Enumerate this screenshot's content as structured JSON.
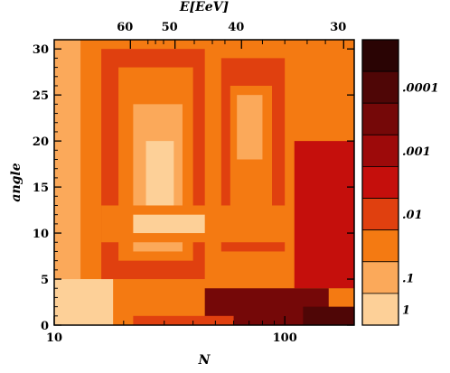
{
  "chart_data": {
    "type": "heatmap",
    "title": "",
    "xlabel": "N",
    "ylabel": "angle",
    "top_axis_label": "E[EeV]",
    "x_scale": "log",
    "xlim": [
      10,
      200
    ],
    "ylim": [
      0,
      31
    ],
    "x_tick_labels": [
      "10",
      "100"
    ],
    "y_tick_labels": [
      "0",
      "5",
      "10",
      "15",
      "20",
      "25",
      "30"
    ],
    "y_ticks": [
      0,
      5,
      10,
      15,
      20,
      25,
      30
    ],
    "top_tick_labels": [
      "60",
      "50",
      "40",
      "30"
    ],
    "top_tick_positions_N": [
      21.4,
      33.4,
      64.9,
      180
    ],
    "colorbar": {
      "scale": "log",
      "labels": [
        ".0001",
        ".001",
        ".01",
        ".1",
        "1"
      ],
      "colors": [
        "#2a0404",
        "#4f0606",
        "#750808",
        "#9d0a0a",
        "#c50f0c",
        "#e0400f",
        "#f47a12",
        "#fba95a",
        "#fdd098"
      ]
    },
    "grid": false,
    "legend": "colorbar-right",
    "description_levels": "cell values are color levels 0 (lightest, value 1) to 8 (darkest, value below .0001)",
    "regions": [
      {
        "N_min": 10,
        "N_max": 200,
        "angle_min": 0,
        "angle_max": 31,
        "level": 6
      },
      {
        "N_min": 10,
        "N_max": 13,
        "angle_min": 5,
        "angle_max": 31,
        "level": 7
      },
      {
        "N_min": 10,
        "N_max": 18,
        "angle_min": 0,
        "angle_max": 5,
        "level": 8
      },
      {
        "N_min": 16,
        "N_max": 45,
        "angle_min": 5,
        "angle_max": 30,
        "level": 5
      },
      {
        "N_min": 19,
        "N_max": 40,
        "angle_min": 7,
        "angle_max": 28,
        "level": 6
      },
      {
        "N_min": 22,
        "N_max": 36,
        "angle_min": 8,
        "angle_max": 24,
        "level": 7
      },
      {
        "N_min": 25,
        "N_max": 33,
        "angle_min": 10,
        "angle_max": 20,
        "level": 8
      },
      {
        "N_min": 53,
        "N_max": 100,
        "angle_min": 8,
        "angle_max": 29,
        "level": 5
      },
      {
        "N_min": 58,
        "N_max": 88,
        "angle_min": 12,
        "angle_max": 26,
        "level": 6
      },
      {
        "N_min": 62,
        "N_max": 80,
        "angle_min": 18,
        "angle_max": 25,
        "level": 7
      },
      {
        "N_min": 16,
        "N_max": 130,
        "angle_min": 9,
        "angle_max": 13,
        "level": 6
      },
      {
        "N_min": 22,
        "N_max": 45,
        "angle_min": 10,
        "angle_max": 12,
        "level": 8
      },
      {
        "N_min": 110,
        "N_max": 200,
        "angle_min": 4,
        "angle_max": 20,
        "level": 4
      },
      {
        "N_min": 45,
        "N_max": 200,
        "angle_min": 0,
        "angle_max": 4,
        "level": 2
      },
      {
        "N_min": 120,
        "N_max": 200,
        "angle_min": 0,
        "angle_max": 2,
        "level": 1
      },
      {
        "N_min": 155,
        "N_max": 200,
        "angle_min": 2,
        "angle_max": 4,
        "level": 6
      },
      {
        "N_min": 22,
        "N_max": 60,
        "angle_min": 0,
        "angle_max": 1,
        "level": 5
      }
    ]
  }
}
